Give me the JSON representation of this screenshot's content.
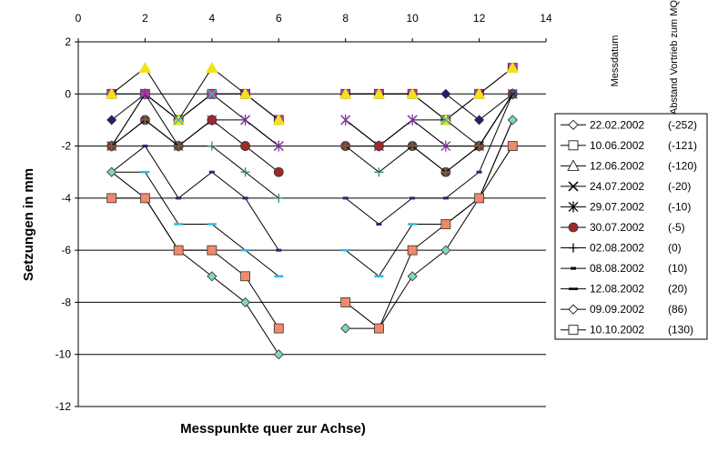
{
  "chart_data": {
    "type": "line",
    "title": "",
    "xlabel": "Messpunkte quer zur Achse)",
    "ylabel": "Setzungen in mm",
    "xlim": [
      0,
      14
    ],
    "ylim": [
      -12,
      2
    ],
    "x_ticks": [
      "0",
      "2",
      "4",
      "6",
      "8",
      "10",
      "12",
      "14"
    ],
    "y_ticks": [
      "2",
      "0",
      "-2",
      "-4",
      "-6",
      "-8",
      "-10",
      "-12"
    ],
    "x_axis_position": "top",
    "grid": "horizontal",
    "legend_position": "right",
    "legend_headers": [
      "Messdatum",
      "Abstand Vortrieb zum MQ"
    ],
    "series": [
      {
        "name": "22.02.2002",
        "distance": "(-252)",
        "marker": "diamond",
        "color": "#1f1f78",
        "legend_marker": "diamond-open",
        "points": [
          [
            1,
            -1
          ],
          [
            2,
            0
          ],
          [
            3,
            -1
          ],
          [
            4,
            0
          ],
          [
            5,
            0
          ],
          [
            6,
            -1
          ],
          [
            8,
            0
          ],
          [
            9,
            0
          ],
          [
            10,
            0
          ],
          [
            11,
            0
          ],
          [
            12,
            -1
          ],
          [
            13,
            0
          ]
        ]
      },
      {
        "name": "10.06.2002",
        "distance": "(-121)",
        "marker": "square",
        "color": "#c03da6",
        "legend_marker": "square-open",
        "points": [
          [
            1,
            0
          ],
          [
            2,
            0
          ],
          [
            3,
            -1
          ],
          [
            4,
            0
          ],
          [
            5,
            0
          ],
          [
            6,
            -1
          ],
          [
            8,
            0
          ],
          [
            9,
            0
          ],
          [
            10,
            0
          ],
          [
            11,
            -1
          ],
          [
            12,
            0
          ],
          [
            13,
            1
          ]
        ]
      },
      {
        "name": "12.06.2002",
        "distance": "(-120)",
        "marker": "triangle",
        "color": "#f2e21a",
        "legend_marker": "triangle-open",
        "points": [
          [
            1,
            0
          ],
          [
            2,
            1
          ],
          [
            3,
            -1
          ],
          [
            4,
            1
          ],
          [
            5,
            0
          ],
          [
            6,
            -1
          ],
          [
            8,
            0
          ],
          [
            9,
            0
          ],
          [
            10,
            0
          ],
          [
            11,
            -1
          ],
          [
            12,
            0
          ],
          [
            13,
            1
          ]
        ]
      },
      {
        "name": "24.07.2002",
        "distance": "(-20)",
        "marker": "x",
        "color": "#44b8a0",
        "legend_marker": "x",
        "points": [
          [
            1,
            -2
          ],
          [
            2,
            0
          ],
          [
            3,
            -1
          ],
          [
            4,
            0
          ],
          [
            5,
            -1
          ],
          [
            6,
            -2
          ],
          [
            8,
            -1
          ],
          [
            9,
            -2
          ],
          [
            10,
            -1
          ],
          [
            11,
            -1
          ],
          [
            12,
            -2
          ],
          [
            13,
            0
          ]
        ]
      },
      {
        "name": "29.07.2002",
        "distance": "(-10)",
        "marker": "star",
        "color": "#8a2ba0",
        "legend_marker": "star",
        "points": [
          [
            1,
            -2
          ],
          [
            2,
            0
          ],
          [
            3,
            -2
          ],
          [
            4,
            -1
          ],
          [
            5,
            -1
          ],
          [
            6,
            -2
          ],
          [
            8,
            -1
          ],
          [
            9,
            -2
          ],
          [
            10,
            -1
          ],
          [
            11,
            -2
          ],
          [
            12,
            -2
          ],
          [
            13,
            0
          ]
        ]
      },
      {
        "name": "30.07.2002",
        "distance": "(-5)",
        "marker": "circle",
        "color": "#9e2a2a",
        "legend_marker": "circle-filled",
        "points": [
          [
            1,
            -2
          ],
          [
            2,
            -1
          ],
          [
            3,
            -2
          ],
          [
            4,
            -1
          ],
          [
            5,
            -2
          ],
          [
            6,
            -3
          ],
          [
            8,
            -2
          ],
          [
            9,
            -2
          ],
          [
            10,
            -2
          ],
          [
            11,
            -3
          ],
          [
            12,
            -2
          ],
          [
            13,
            0
          ]
        ]
      },
      {
        "name": "02.08.2002",
        "distance": "(0)",
        "marker": "plus",
        "color": "#2e8b57",
        "legend_marker": "plus",
        "points": [
          [
            1,
            -2
          ],
          [
            2,
            -1
          ],
          [
            3,
            -2
          ],
          [
            4,
            -2
          ],
          [
            5,
            -3
          ],
          [
            6,
            -4
          ],
          [
            8,
            -2
          ],
          [
            9,
            -3
          ],
          [
            10,
            -2
          ],
          [
            11,
            -3
          ],
          [
            12,
            -2
          ],
          [
            13,
            0
          ]
        ]
      },
      {
        "name": "08.08.2002",
        "distance": "(10)",
        "marker": "dash",
        "color": "#1f2a78",
        "legend_marker": "dash",
        "points": [
          [
            1,
            -3
          ],
          [
            2,
            -2
          ],
          [
            3,
            -4
          ],
          [
            4,
            -3
          ],
          [
            5,
            -4
          ],
          [
            6,
            -6
          ],
          [
            8,
            -4
          ],
          [
            9,
            -5
          ],
          [
            10,
            -4
          ],
          [
            11,
            -4
          ],
          [
            12,
            -3
          ],
          [
            13,
            0
          ]
        ]
      },
      {
        "name": "12.08.2002",
        "distance": "(20)",
        "marker": "bar",
        "color": "#33b8e0",
        "legend_marker": "bar",
        "points": [
          [
            1,
            -3
          ],
          [
            2,
            -3
          ],
          [
            3,
            -5
          ],
          [
            4,
            -5
          ],
          [
            5,
            -6
          ],
          [
            6,
            -7
          ],
          [
            8,
            -6
          ],
          [
            9,
            -7
          ],
          [
            10,
            -5
          ],
          [
            11,
            -5
          ],
          [
            12,
            -4
          ],
          [
            13,
            -1
          ]
        ]
      },
      {
        "name": "09.09.2002",
        "distance": "(86)",
        "marker": "diamond",
        "color": "#7dd6c4",
        "legend_marker": "diamond-open",
        "points": [
          [
            1,
            -3
          ],
          [
            2,
            -4
          ],
          [
            3,
            -6
          ],
          [
            4,
            -7
          ],
          [
            5,
            -8
          ],
          [
            6,
            -10
          ],
          [
            8,
            -9
          ],
          [
            9,
            -9
          ],
          [
            10,
            -7
          ],
          [
            11,
            -6
          ],
          [
            12,
            -4
          ],
          [
            13,
            -1
          ]
        ]
      },
      {
        "name": "10.10.2002",
        "distance": "(130)",
        "marker": "square",
        "color": "#f08a6a",
        "legend_marker": "square-open",
        "points": [
          [
            1,
            -4
          ],
          [
            2,
            -4
          ],
          [
            3,
            -6
          ],
          [
            4,
            -6
          ],
          [
            5,
            -7
          ],
          [
            6,
            -9
          ],
          [
            8,
            -8
          ],
          [
            9,
            -9
          ],
          [
            10,
            -6
          ],
          [
            11,
            -5
          ],
          [
            12,
            -4
          ],
          [
            13,
            -2
          ]
        ]
      }
    ]
  }
}
